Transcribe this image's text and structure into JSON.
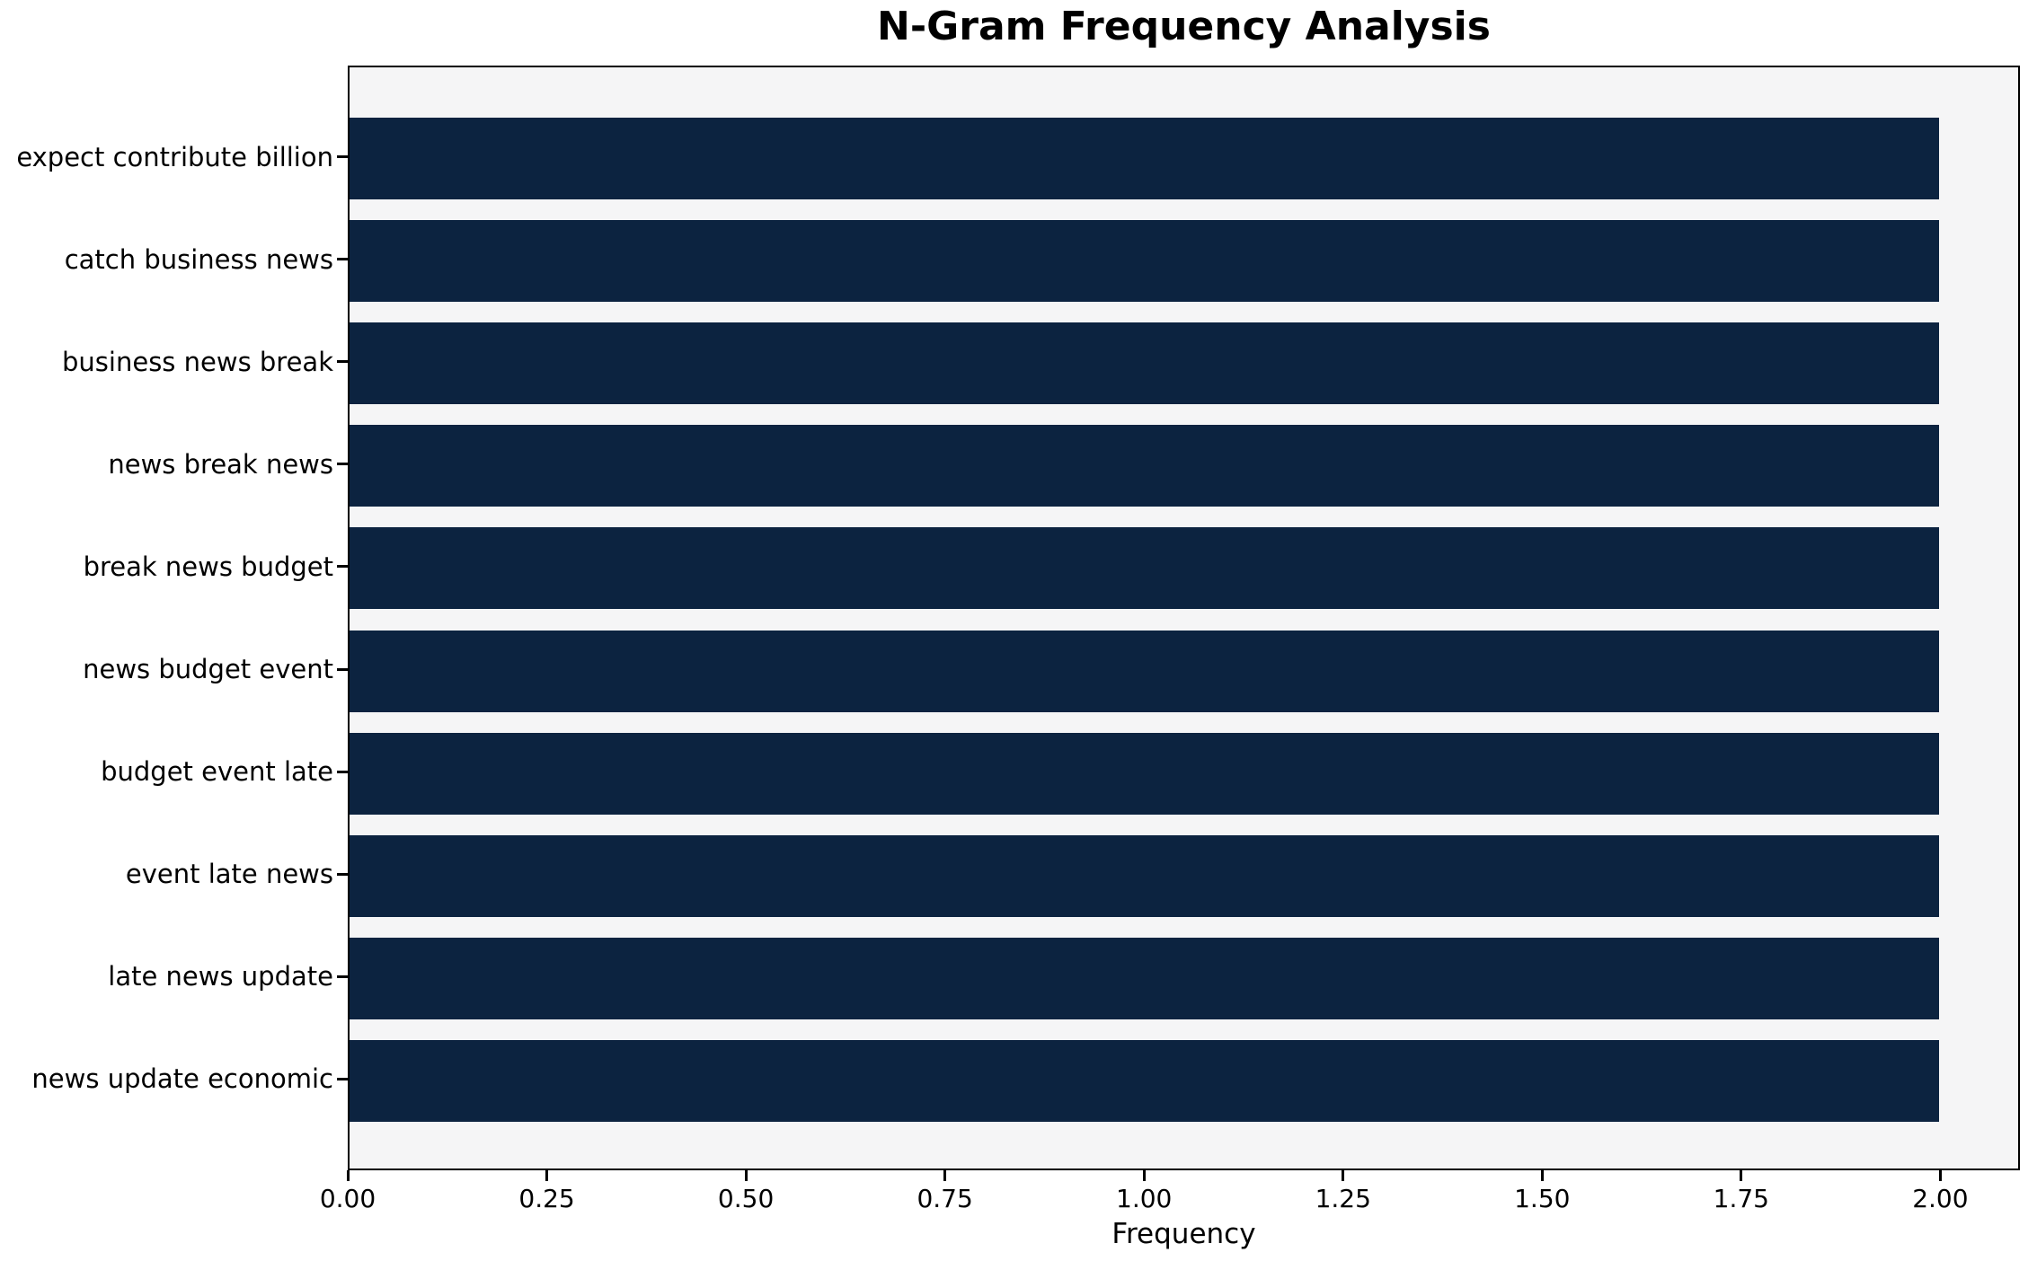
{
  "chart_data": {
    "type": "bar",
    "orientation": "horizontal",
    "title": "N-Gram Frequency Analysis",
    "xlabel": "Frequency",
    "ylabel": "",
    "categories": [
      "expect contribute billion",
      "catch business news",
      "business news break",
      "news break news",
      "break news budget",
      "news budget event",
      "budget event late",
      "event late news",
      "late news update",
      "news update economic"
    ],
    "values": [
      2,
      2,
      2,
      2,
      2,
      2,
      2,
      2,
      2,
      2
    ],
    "xlim": [
      0,
      2.1
    ],
    "xticks": [
      0.0,
      0.25,
      0.5,
      0.75,
      1.0,
      1.25,
      1.5,
      1.75,
      2.0
    ],
    "xtick_labels": [
      "0.00",
      "0.25",
      "0.50",
      "0.75",
      "1.00",
      "1.25",
      "1.50",
      "1.75",
      "2.00"
    ],
    "grid": false,
    "legend": null,
    "colors": {
      "bar": "#0c2340",
      "plot_background": "#f5f5f6",
      "figure_background": "#ffffff",
      "spine": "#000000",
      "text": "#000000"
    }
  }
}
